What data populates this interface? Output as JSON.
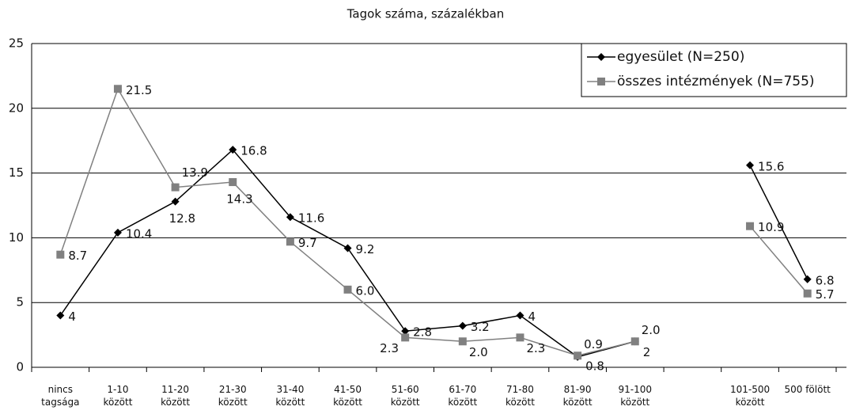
{
  "chart_data": {
    "type": "line",
    "title": "Tagok száma, százalékban",
    "categories": [
      "nincs tagsága",
      "1-10 között",
      "11-20 között",
      "21-30 között",
      "31-40 között",
      "41-50 között",
      "51-60 között",
      "61-70 között",
      "71-80 között",
      "81-90 között",
      "91-100 között",
      null,
      "101-500 között",
      "500 fölött"
    ],
    "series": [
      {
        "name": "egyesület (N=250)",
        "color": "#000000",
        "marker": "diamond",
        "values": [
          4,
          10.4,
          12.8,
          16.8,
          11.6,
          9.2,
          2.8,
          3.2,
          4,
          0.8,
          2,
          null,
          15.6,
          6.8
        ]
      },
      {
        "name": "összes intézmények (N=755)",
        "color": "#808080",
        "marker": "square",
        "values": [
          8.7,
          21.5,
          13.9,
          14.3,
          9.7,
          6.0,
          2.3,
          2.0,
          2.3,
          0.9,
          2.0,
          null,
          10.9,
          5.7
        ],
        "value_labels": [
          "8.7",
          "21.5",
          "13.9",
          "14.3",
          "9.7",
          "6.0",
          "2.3",
          "2.0",
          "2.3",
          "0.9",
          "2.0",
          null,
          "10.9",
          "5.7"
        ]
      }
    ],
    "ylim": [
      0,
      25
    ],
    "yticks": [
      0,
      5,
      10,
      15,
      20,
      25
    ],
    "grid": true,
    "legend": "top-right"
  }
}
